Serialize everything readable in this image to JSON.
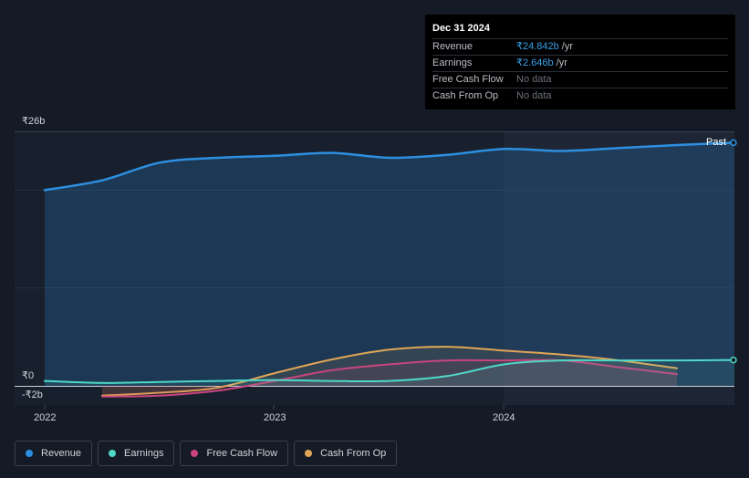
{
  "tooltip": {
    "date": "Dec 31 2024",
    "rows": [
      {
        "label": "Revenue",
        "value": "₹24.842b",
        "unit": "/yr"
      },
      {
        "label": "Earnings",
        "value": "₹2.646b",
        "unit": "/yr"
      },
      {
        "label": "Free Cash Flow",
        "value": "No data"
      },
      {
        "label": "Cash From Op",
        "value": "No data"
      }
    ]
  },
  "past_label": "Past",
  "legend": [
    {
      "label": "Revenue",
      "color": "#2d8fe0"
    },
    {
      "label": "Earnings",
      "color": "#4fd8c8"
    },
    {
      "label": "Free Cash Flow",
      "color": "#c8457e"
    },
    {
      "label": "Cash From Op",
      "color": "#e0a656"
    }
  ],
  "chart_data": {
    "type": "line",
    "y_tick_labels": [
      "₹26b",
      "₹0",
      "-₹2b"
    ],
    "x_tick_labels": [
      "2022",
      "2023",
      "2024"
    ],
    "ylim": [
      -2,
      26
    ],
    "xlim": [
      2022.0,
      2025.0
    ],
    "series": [
      {
        "name": "Revenue",
        "color": "#2d8fe0",
        "x": [
          2022.0,
          2022.25,
          2022.5,
          2022.75,
          2023.0,
          2023.25,
          2023.5,
          2023.75,
          2024.0,
          2024.25,
          2024.5,
          2024.75,
          2025.0
        ],
        "y": [
          20.0,
          21.0,
          22.8,
          23.3,
          23.5,
          23.8,
          23.3,
          23.6,
          24.2,
          24.0,
          24.3,
          24.6,
          24.842
        ]
      },
      {
        "name": "Earnings",
        "color": "#4fd8c8",
        "x": [
          2022.0,
          2022.25,
          2022.5,
          2022.75,
          2023.0,
          2023.25,
          2023.5,
          2023.75,
          2024.0,
          2024.25,
          2024.5,
          2024.75,
          2025.0
        ],
        "y": [
          0.5,
          0.3,
          0.4,
          0.5,
          0.6,
          0.5,
          0.5,
          1.0,
          2.2,
          2.6,
          2.6,
          2.6,
          2.646
        ]
      },
      {
        "name": "Free Cash Flow",
        "color": "#c8457e",
        "x": [
          2022.25,
          2022.5,
          2022.75,
          2023.0,
          2023.25,
          2023.5,
          2023.75,
          2024.0,
          2024.25,
          2024.5,
          2024.75
        ],
        "y": [
          -1.1,
          -1.0,
          -0.5,
          0.5,
          1.6,
          2.2,
          2.6,
          2.6,
          2.6,
          1.9,
          1.2
        ]
      },
      {
        "name": "Cash From Op",
        "color": "#e0a656",
        "x": [
          2022.25,
          2022.5,
          2022.75,
          2023.0,
          2023.25,
          2023.5,
          2023.75,
          2024.0,
          2024.25,
          2024.5,
          2024.75
        ],
        "y": [
          -1.0,
          -0.7,
          -0.2,
          1.3,
          2.7,
          3.7,
          4.0,
          3.6,
          3.2,
          2.6,
          1.8
        ]
      }
    ]
  }
}
